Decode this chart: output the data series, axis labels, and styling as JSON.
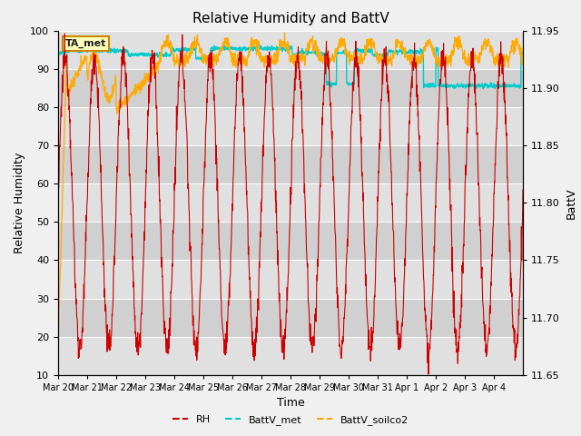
{
  "title": "Relative Humidity and BattV",
  "xlabel": "Time",
  "ylabel_left": "Relative Humidity",
  "ylabel_right": "BattV",
  "ylim_left": [
    10,
    100
  ],
  "ylim_right": [
    11.65,
    11.95
  ],
  "x_tick_labels": [
    "Mar 20",
    "Mar 21",
    "Mar 22",
    "Mar 23",
    "Mar 24",
    "Mar 25",
    "Mar 26",
    "Mar 27",
    "Mar 28",
    "Mar 29",
    "Mar 30",
    "Mar 31",
    "Apr 1",
    "Apr 2",
    "Apr 3",
    "Apr 4"
  ],
  "legend_labels": [
    "RH",
    "BattV_met",
    "BattV_soilco2"
  ],
  "legend_colors": [
    "#cc0000",
    "#00cccc",
    "#ffaa00"
  ],
  "annotation_text": "TA_met",
  "annotation_border_color": "#cc8800",
  "annotation_fill_color": "#ffffbb",
  "bg_color": "#f0f0f0",
  "plot_bg_color": "#e8e8e8",
  "grid_color": "#ffffff",
  "rh_color": "#cc0000",
  "battv_met_color": "#00cccc",
  "battv_soilco2_color": "#ffaa00",
  "band_colors": [
    "#e0e0e0",
    "#d0d0d0"
  ],
  "n_days": 16,
  "yticks_left": [
    10,
    20,
    30,
    40,
    50,
    60,
    70,
    80,
    90,
    100
  ],
  "yticks_right": [
    11.65,
    11.7,
    11.75,
    11.8,
    11.85,
    11.9,
    11.95
  ]
}
